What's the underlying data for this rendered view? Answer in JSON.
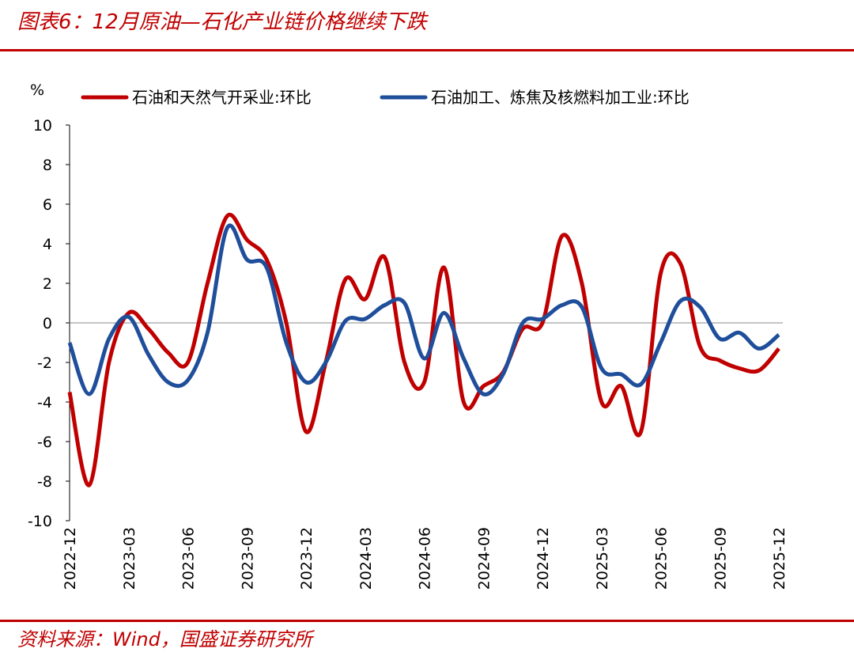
{
  "chart_data": {
    "type": "line",
    "title": "图表6：12月原油—石化产业链价格继续下跌",
    "y_label": "%",
    "source": "资料来源：Wind，国盛证券研究所",
    "categories": [
      "2022-12",
      null,
      null,
      "2023-03",
      null,
      null,
      "2023-06",
      null,
      null,
      "2023-09",
      null,
      null,
      "2023-12",
      null,
      null,
      "2024-03",
      null,
      null,
      "2024-06",
      null,
      null,
      "2024-09",
      null,
      null,
      "2024-12",
      null,
      null,
      "2025-03",
      null,
      null,
      "2025-06",
      null,
      null,
      "2025-09",
      null,
      null,
      "2025-12"
    ],
    "series": [
      {
        "name": "石油和天然气开采业:环比",
        "color": "#c00000",
        "values": [
          -3.5,
          -8.2,
          -2,
          0.5,
          -0.3,
          -1.5,
          -2,
          2,
          5.4,
          4.2,
          3.2,
          0,
          -5.5,
          -2,
          2.2,
          1.2,
          3.3,
          -2,
          -3,
          2.8,
          -4,
          -3.2,
          -2.5,
          -0.3,
          0,
          4.4,
          2,
          -4,
          -3.2,
          -5.5,
          2.5,
          3,
          -1.2,
          -1.9,
          -2.3,
          -2.4,
          -1.3
        ]
      },
      {
        "name": "石油加工、炼焦及核燃料加工业:环比",
        "color": "#1f4e9b",
        "values": [
          -1,
          -3.6,
          -0.8,
          0.3,
          -1.6,
          -3,
          -2.9,
          -0.5,
          4.8,
          3.2,
          2.8,
          -1,
          -3,
          -2,
          0.1,
          0.2,
          0.9,
          1,
          -1.8,
          0.5,
          -1.8,
          -3.6,
          -2.6,
          0,
          0.2,
          0.9,
          0.8,
          -2.3,
          -2.6,
          -3.1,
          -1,
          1.1,
          0.8,
          -0.8,
          -0.5,
          -1.3,
          -0.6
        ]
      }
    ],
    "ylim": [
      -10,
      10
    ],
    "yticks": [
      -10,
      -8,
      -6,
      -4,
      -2,
      0,
      2,
      4,
      6,
      8,
      10
    ]
  }
}
